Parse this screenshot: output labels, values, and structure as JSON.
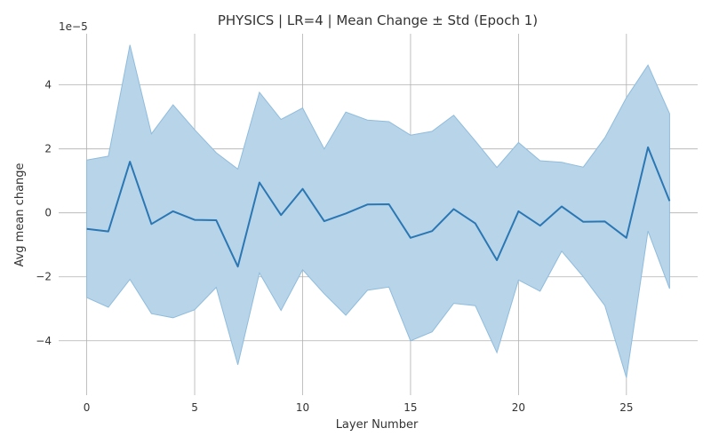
{
  "chart_data": {
    "type": "line",
    "title": "PHYSICS | LR=4 | Mean Change ± Std (Epoch 1)",
    "xlabel": "Layer Number",
    "ylabel": "Avg mean change",
    "y_scale_label": "1e−5",
    "xlim": [
      -1.3,
      28.3
    ],
    "ylim": [
      -5.7,
      5.6
    ],
    "x_ticks": [
      0,
      5,
      10,
      15,
      20,
      25
    ],
    "y_ticks": [
      -4,
      -2,
      0,
      2,
      4
    ],
    "x_tick_labels": [
      "0",
      "5",
      "10",
      "15",
      "20",
      "25"
    ],
    "y_tick_labels": [
      "−4",
      "−2",
      "0",
      "2",
      "4"
    ],
    "grid": true,
    "colors": {
      "line": "#2a77b4",
      "band": "#b8d4e9",
      "band_edge": "#8fbcdc"
    },
    "x": [
      0,
      1,
      2,
      3,
      4,
      5,
      6,
      7,
      8,
      9,
      10,
      11,
      12,
      13,
      14,
      15,
      16,
      17,
      18,
      19,
      20,
      21,
      22,
      23,
      24,
      25,
      26,
      27
    ],
    "series": [
      {
        "mean": [
          -0.5,
          -0.58,
          1.6,
          -0.35,
          0.05,
          -0.22,
          -0.23,
          -1.68,
          0.95,
          -0.07,
          0.75,
          -0.26,
          -0.02,
          0.26,
          0.27,
          -0.78,
          -0.57,
          0.12,
          -0.33,
          -1.48,
          0.05,
          -0.4,
          0.2,
          -0.28,
          -0.27,
          -0.78,
          2.05,
          0.37
        ],
        "upper": [
          1.65,
          1.77,
          5.25,
          2.47,
          3.38,
          2.6,
          1.88,
          1.37,
          3.77,
          2.92,
          3.28,
          2.0,
          3.15,
          2.9,
          2.85,
          2.43,
          2.55,
          3.05,
          2.25,
          1.42,
          2.2,
          1.63,
          1.58,
          1.43,
          2.35,
          3.6,
          4.62,
          3.1
        ],
        "lower": [
          -2.65,
          -2.95,
          -2.08,
          -3.15,
          -3.28,
          -3.03,
          -2.33,
          -4.75,
          -1.88,
          -3.05,
          -1.78,
          -2.53,
          -3.2,
          -2.42,
          -2.32,
          -4.0,
          -3.72,
          -2.83,
          -2.9,
          -4.37,
          -2.1,
          -2.45,
          -1.2,
          -2.0,
          -2.9,
          -5.15,
          -0.57,
          -2.37
        ]
      }
    ]
  }
}
